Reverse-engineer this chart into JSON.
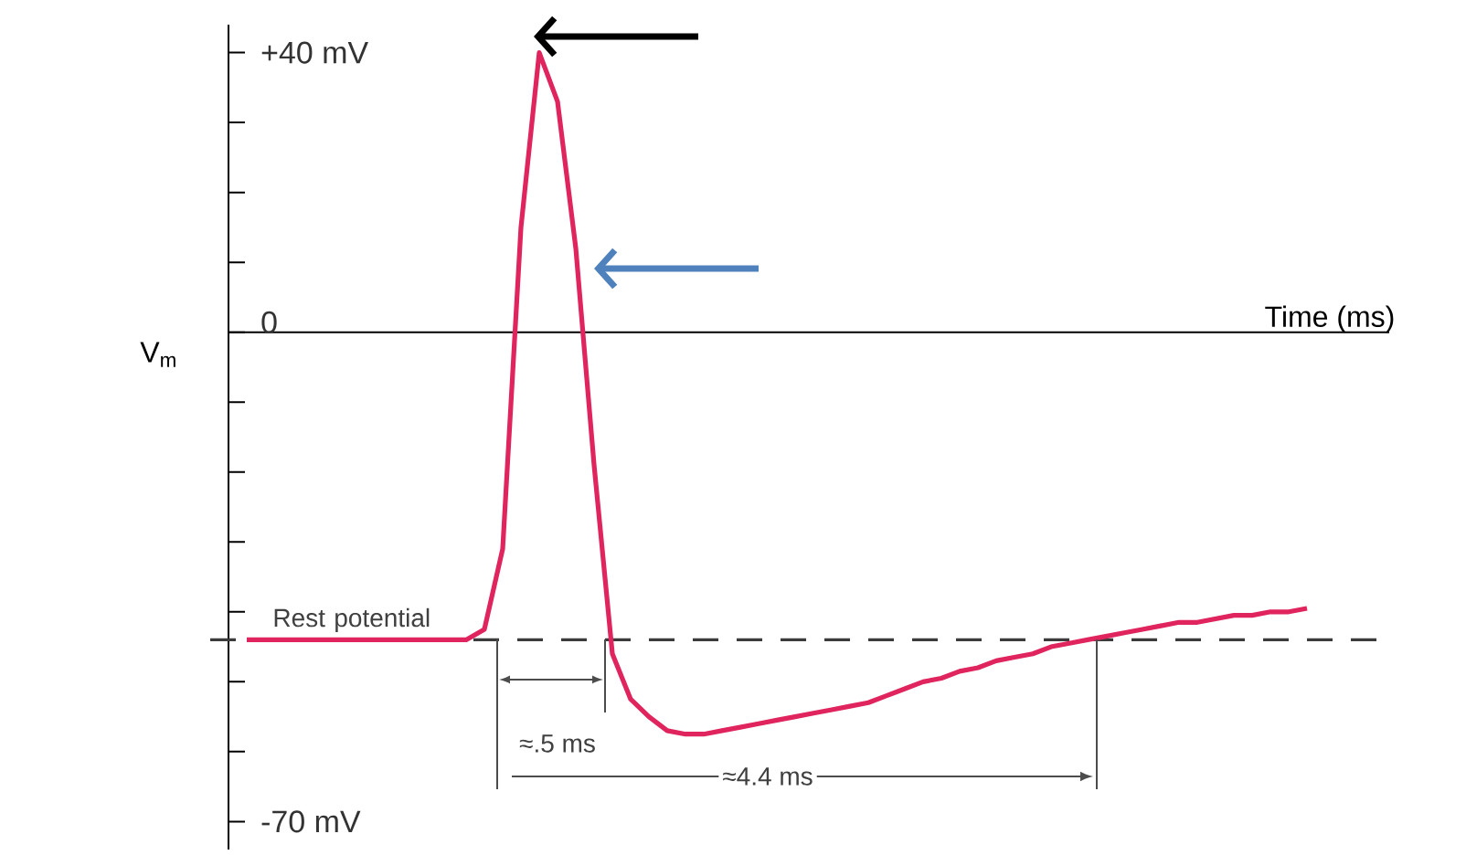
{
  "chart_data": {
    "type": "line",
    "xlabel": "Time (ms)",
    "ylabel": "V$_{m}$",
    "categories": [
      null,
      null,
      null,
      null,
      null,
      null,
      null,
      null,
      null,
      null,
      null,
      null,
      null,
      null,
      null,
      null,
      null,
      null,
      null,
      null,
      null,
      null,
      null,
      null,
      null,
      null,
      null,
      null,
      null,
      null,
      null,
      null,
      null,
      null,
      null,
      null,
      null,
      null,
      null,
      null,
      null,
      null,
      null,
      null,
      null,
      null,
      null,
      null,
      null,
      null,
      null,
      null,
      null,
      null,
      null,
      null,
      null,
      null,
      null
    ],
    "values": [
      -44,
      -44,
      -44,
      -44,
      -44,
      -44,
      -44,
      -44,
      -44,
      -44,
      -44,
      -44,
      -44,
      -42.5,
      -31,
      15,
      40,
      33,
      12,
      -19,
      -46,
      -52.5,
      -55,
      -57,
      -57.5,
      -57.5,
      -57,
      -56.5,
      -56,
      -55.5,
      -55,
      -54.5,
      -54,
      -53.5,
      -53,
      -52,
      -51,
      -50,
      -49.5,
      -48.5,
      -48,
      -47,
      -46.5,
      -46,
      -45,
      -44.5,
      -44,
      -43.5,
      -43,
      -42.5,
      -42,
      -41.5,
      -41.5,
      -41,
      -40.5,
      -40.5,
      -40,
      -40,
      -39.5
    ],
    "color": "#e0245e",
    "ylim": [
      -74,
      44
    ],
    "yticks": [
      {
        "value": 40,
        "label": "+40 mV"
      },
      {
        "value": 30,
        "label": null
      },
      {
        "value": 20,
        "label": null
      },
      {
        "value": 10,
        "label": null
      },
      0,
      {
        "value": -10,
        "label": null
      },
      {
        "value": -20,
        "label": null
      },
      {
        "value": -30,
        "label": null
      },
      {
        "value": -40,
        "label": null
      },
      {
        "value": -50,
        "label": null
      },
      {
        "value": -60,
        "label": null
      },
      {
        "value": -70,
        "label": "-70 mV"
      }
    ],
    "ref_lines": [
      {
        "axis": "y",
        "value": -44,
        "label": "Rest potential",
        "color": "#3c3c3c",
        "line_style": "dashed"
      }
    ],
    "annotations": [
      "≈.5 ms",
      "≈4.4 ms"
    ]
  }
}
